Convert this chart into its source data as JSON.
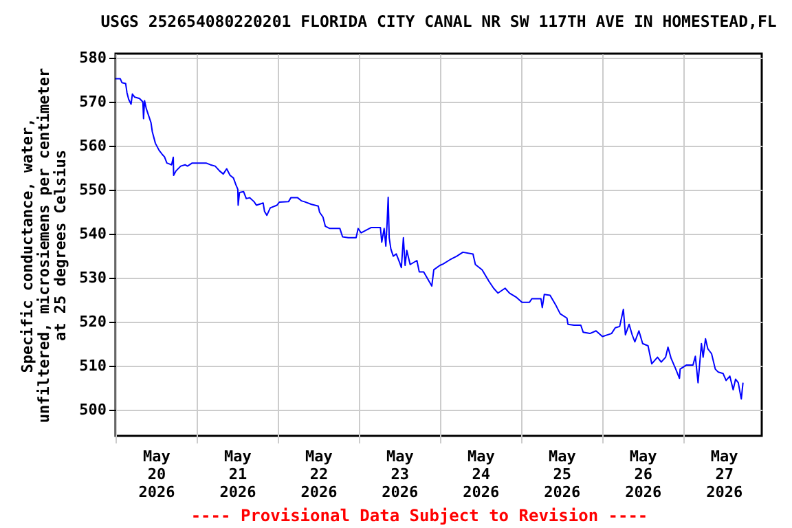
{
  "chart_data": {
    "type": "line",
    "title": "USGS 252654080220201 FLORIDA CITY CANAL NR SW 117TH AVE IN HOMESTEAD,FL",
    "ylabel": "Specific conductance, water,\nunfiltered, microsiemens per centimeter\nat 25 degrees Celsius",
    "annotations": [
      "---- Provisional Data Subject to Revision ----"
    ],
    "color": "#0000ff",
    "grid": true,
    "xlim": [
      "2026-05-20T00:00",
      "2026-05-27T23:15"
    ],
    "ylim": [
      494,
      581
    ],
    "yticks": [
      500,
      510,
      520,
      530,
      540,
      550,
      560,
      570,
      580
    ],
    "xticks": [
      {
        "value": "2026-05-20T00:00",
        "label": null
      },
      {
        "value": "2026-05-20T12:00",
        "label": "May 20 2026"
      },
      {
        "value": "2026-05-21T00:00",
        "label": null
      },
      {
        "value": "2026-05-21T12:00",
        "label": "May 21 2026"
      },
      {
        "value": "2026-05-22T00:00",
        "label": null
      },
      {
        "value": "2026-05-22T12:00",
        "label": "May 22 2026"
      },
      {
        "value": "2026-05-23T00:00",
        "label": null
      },
      {
        "value": "2026-05-23T12:00",
        "label": "May 23 2026"
      },
      {
        "value": "2026-05-24T00:00",
        "label": null
      },
      {
        "value": "2026-05-24T12:00",
        "label": "May 24 2026"
      },
      {
        "value": "2026-05-25T00:00",
        "label": null
      },
      {
        "value": "2026-05-25T12:00",
        "label": "May 25 2026"
      },
      {
        "value": "2026-05-26T00:00",
        "label": null
      },
      {
        "value": "2026-05-26T12:00",
        "label": "May 26 2026"
      },
      {
        "value": "2026-05-27T00:00",
        "label": null
      },
      {
        "value": "2026-05-27T12:00",
        "label": "May 27 2026"
      }
    ],
    "x": [
      "2026-05-20T00:00",
      "2026-05-20T01:24",
      "2026-05-20T01:54",
      "2026-05-20T03:00",
      "2026-05-20T03:24",
      "2026-05-20T03:54",
      "2026-05-20T04:36",
      "2026-05-20T05:00",
      "2026-05-20T05:42",
      "2026-05-20T07:06",
      "2026-05-20T08:06",
      "2026-05-20T08:18",
      "2026-05-20T08:36",
      "2026-05-20T09:06",
      "2026-05-20T09:48",
      "2026-05-20T10:30",
      "2026-05-20T10:54",
      "2026-05-20T11:48",
      "2026-05-20T12:54",
      "2026-05-20T13:54",
      "2026-05-20T14:30",
      "2026-05-20T15:12",
      "2026-05-20T15:54",
      "2026-05-20T16:36",
      "2026-05-20T17:06",
      "2026-05-20T17:12",
      "2026-05-20T17:54",
      "2026-05-20T19:18",
      "2026-05-20T20:36",
      "2026-05-20T21:18",
      "2026-05-20T22:42",
      "2026-05-21T02:48",
      "2026-05-21T04:06",
      "2026-05-21T05:30",
      "2026-05-21T06:48",
      "2026-05-21T07:54",
      "2026-05-21T08:54",
      "2026-05-21T09:54",
      "2026-05-21T10:54",
      "2026-05-21T11:36",
      "2026-05-21T12:12",
      "2026-05-21T12:18",
      "2026-05-21T12:42",
      "2026-05-21T13:54",
      "2026-05-21T14:42",
      "2026-05-21T15:42",
      "2026-05-21T17:00",
      "2026-05-21T17:42",
      "2026-05-21T19:42",
      "2026-05-21T20:06",
      "2026-05-21T20:48",
      "2026-05-21T21:48",
      "2026-05-21T23:48",
      "2026-05-22T00:30",
      "2026-05-22T03:12",
      "2026-05-22T03:54",
      "2026-05-22T05:54",
      "2026-05-22T07:00",
      "2026-05-22T07:54",
      "2026-05-22T10:00",
      "2026-05-22T12:00",
      "2026-05-22T12:24",
      "2026-05-22T13:24",
      "2026-05-22T14:06",
      "2026-05-22T15:24",
      "2026-05-22T18:24",
      "2026-05-22T19:12",
      "2026-05-22T20:54",
      "2026-05-22T23:12",
      "2026-05-22T23:48",
      "2026-05-23T00:42",
      "2026-05-23T03:36",
      "2026-05-23T06:24",
      "2026-05-23T06:48",
      "2026-05-23T07:30",
      "2026-05-23T08:00",
      "2026-05-23T08:24",
      "2026-05-23T08:42",
      "2026-05-23T09:00",
      "2026-05-23T09:30",
      "2026-05-23T10:12",
      "2026-05-23T11:06",
      "2026-05-23T12:06",
      "2026-05-23T12:36",
      "2026-05-23T13:12",
      "2026-05-23T13:42",
      "2026-05-23T14:12",
      "2026-05-23T15:12",
      "2026-05-23T17:12",
      "2026-05-23T17:54",
      "2026-05-23T19:12",
      "2026-05-23T21:36",
      "2026-05-23T22:12",
      "2026-05-24T00:00",
      "2026-05-24T00:54",
      "2026-05-24T03:00",
      "2026-05-24T05:00",
      "2026-05-24T06:48",
      "2026-05-24T09:48",
      "2026-05-24T10:30",
      "2026-05-24T12:30",
      "2026-05-24T14:30",
      "2026-05-24T15:54",
      "2026-05-24T17:12",
      "2026-05-24T19:18",
      "2026-05-24T20:36",
      "2026-05-24T22:42",
      "2026-05-25T00:18",
      "2026-05-25T02:30",
      "2026-05-25T03:12",
      "2026-05-25T05:54",
      "2026-05-25T06:18",
      "2026-05-25T06:54",
      "2026-05-25T08:36",
      "2026-05-25T10:12",
      "2026-05-25T11:36",
      "2026-05-25T13:36",
      "2026-05-25T13:54",
      "2026-05-25T15:42",
      "2026-05-25T17:42",
      "2026-05-25T18:24",
      "2026-05-25T20:24",
      "2026-05-25T22:12",
      "2026-05-26T00:06",
      "2026-05-26T02:48",
      "2026-05-26T03:54",
      "2026-05-26T05:12",
      "2026-05-26T06:18",
      "2026-05-26T06:54",
      "2026-05-26T08:00",
      "2026-05-26T08:54",
      "2026-05-26T09:42",
      "2026-05-26T10:54",
      "2026-05-26T12:00",
      "2026-05-26T13:36",
      "2026-05-26T14:42",
      "2026-05-26T16:24",
      "2026-05-26T17:30",
      "2026-05-26T18:48",
      "2026-05-26T19:30",
      "2026-05-26T20:24",
      "2026-05-26T21:48",
      "2026-05-26T22:54",
      "2026-05-26T23:06",
      "2026-05-27T00:54",
      "2026-05-27T02:54",
      "2026-05-27T03:36",
      "2026-05-27T04:24",
      "2026-05-27T05:24",
      "2026-05-27T05:54",
      "2026-05-27T06:36",
      "2026-05-27T07:18",
      "2026-05-27T08:24",
      "2026-05-27T09:30",
      "2026-05-27T10:24",
      "2026-05-27T11:48",
      "2026-05-27T12:42",
      "2026-05-27T13:48",
      "2026-05-27T14:48",
      "2026-05-27T15:30",
      "2026-05-27T16:18",
      "2026-05-27T16:48",
      "2026-05-27T17:12",
      "2026-05-27T17:42"
    ],
    "values": [
      575.3,
      575.3,
      574.4,
      574.2,
      572.1,
      570.6,
      569.5,
      571.8,
      571.1,
      570.8,
      570.0,
      566.2,
      570.3,
      568.5,
      566.9,
      565.3,
      563.2,
      560.6,
      559.0,
      558.0,
      557.5,
      556.1,
      555.9,
      555.7,
      557.4,
      553.3,
      554.3,
      555.4,
      555.7,
      555.4,
      556.1,
      556.1,
      555.7,
      555.4,
      554.3,
      553.6,
      554.8,
      553.3,
      552.7,
      551.2,
      550.1,
      546.5,
      549.4,
      549.6,
      548.0,
      548.2,
      547.3,
      546.5,
      547.0,
      545.1,
      544.2,
      545.9,
      546.5,
      547.2,
      547.3,
      548.2,
      548.2,
      547.5,
      547.3,
      546.7,
      546.3,
      544.9,
      543.8,
      541.7,
      541.2,
      541.2,
      539.3,
      539.1,
      539.1,
      541.2,
      540.2,
      541.4,
      541.4,
      538.1,
      541.2,
      537.2,
      542.8,
      548.3,
      539.1,
      536.5,
      534.9,
      535.4,
      533.4,
      532.3,
      539.1,
      532.8,
      536.2,
      533.0,
      533.9,
      531.3,
      531.3,
      528.1,
      531.8,
      532.8,
      533.1,
      534.1,
      534.9,
      535.8,
      535.4,
      533.0,
      531.8,
      529.2,
      527.6,
      526.5,
      527.6,
      526.5,
      525.5,
      524.4,
      524.4,
      525.2,
      525.2,
      523.2,
      526.2,
      526.0,
      523.9,
      521.8,
      520.8,
      519.4,
      519.2,
      519.2,
      517.6,
      517.3,
      517.9,
      516.6,
      517.3,
      518.6,
      518.9,
      522.8,
      517.0,
      519.4,
      517.0,
      515.4,
      517.9,
      515.0,
      514.5,
      510.4,
      511.9,
      510.8,
      511.9,
      514.2,
      511.7,
      509.2,
      507.1,
      509.2,
      510.1,
      510.1,
      512.1,
      506.1,
      515.0,
      511.9,
      516.1,
      513.8,
      512.7,
      509.2,
      508.5,
      508.2,
      506.6,
      507.6,
      504.5,
      506.9,
      506.1,
      504.0,
      502.4,
      506.1
    ]
  }
}
